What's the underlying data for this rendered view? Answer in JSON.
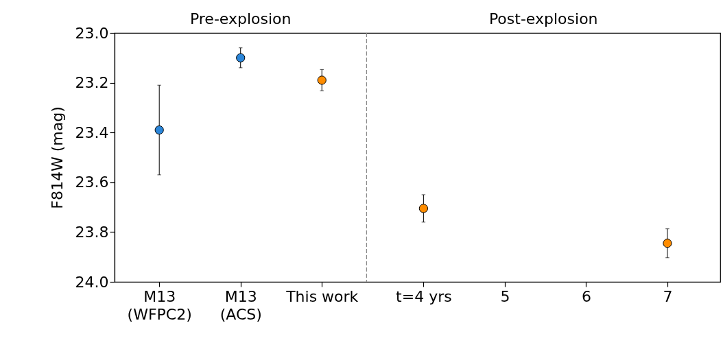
{
  "chart_data": {
    "type": "scatter",
    "ylabel": "F814W (mag)",
    "x": [
      0.75,
      1.75,
      2.75,
      4,
      7
    ],
    "values": [
      23.39,
      23.1,
      23.19,
      23.705,
      23.845
    ],
    "errors": [
      0.18,
      0.04,
      0.043,
      0.055,
      0.058
    ],
    "colors": [
      "#2b86d9",
      "#2b86d9",
      "#ff8c00",
      "#ff8c00",
      "#ff8c00"
    ],
    "xlim": [
      0.2,
      7.65
    ],
    "xticks": [
      {
        "value": 0.75,
        "label": "M13\n(WFPC2)"
      },
      {
        "value": 1.75,
        "label": "M13\n(ACS)"
      },
      {
        "value": 2.75,
        "label": "This work"
      },
      {
        "value": 4,
        "label": "t=4 yrs"
      },
      5,
      6,
      7
    ],
    "ylim": [
      24.0,
      23.0
    ],
    "yticks": [
      {
        "value": 23,
        "label": "23.0"
      },
      23.2,
      23.4,
      23.6,
      23.8,
      {
        "value": 24,
        "label": "24.0"
      }
    ],
    "ref_lines": [
      {
        "axis": "x",
        "value": 3.3,
        "color": "#888888",
        "line_style": "dashed"
      }
    ],
    "annotations": [
      "Pre-explosion",
      "Post-explosion"
    ],
    "marker": "circle",
    "grid": false
  }
}
